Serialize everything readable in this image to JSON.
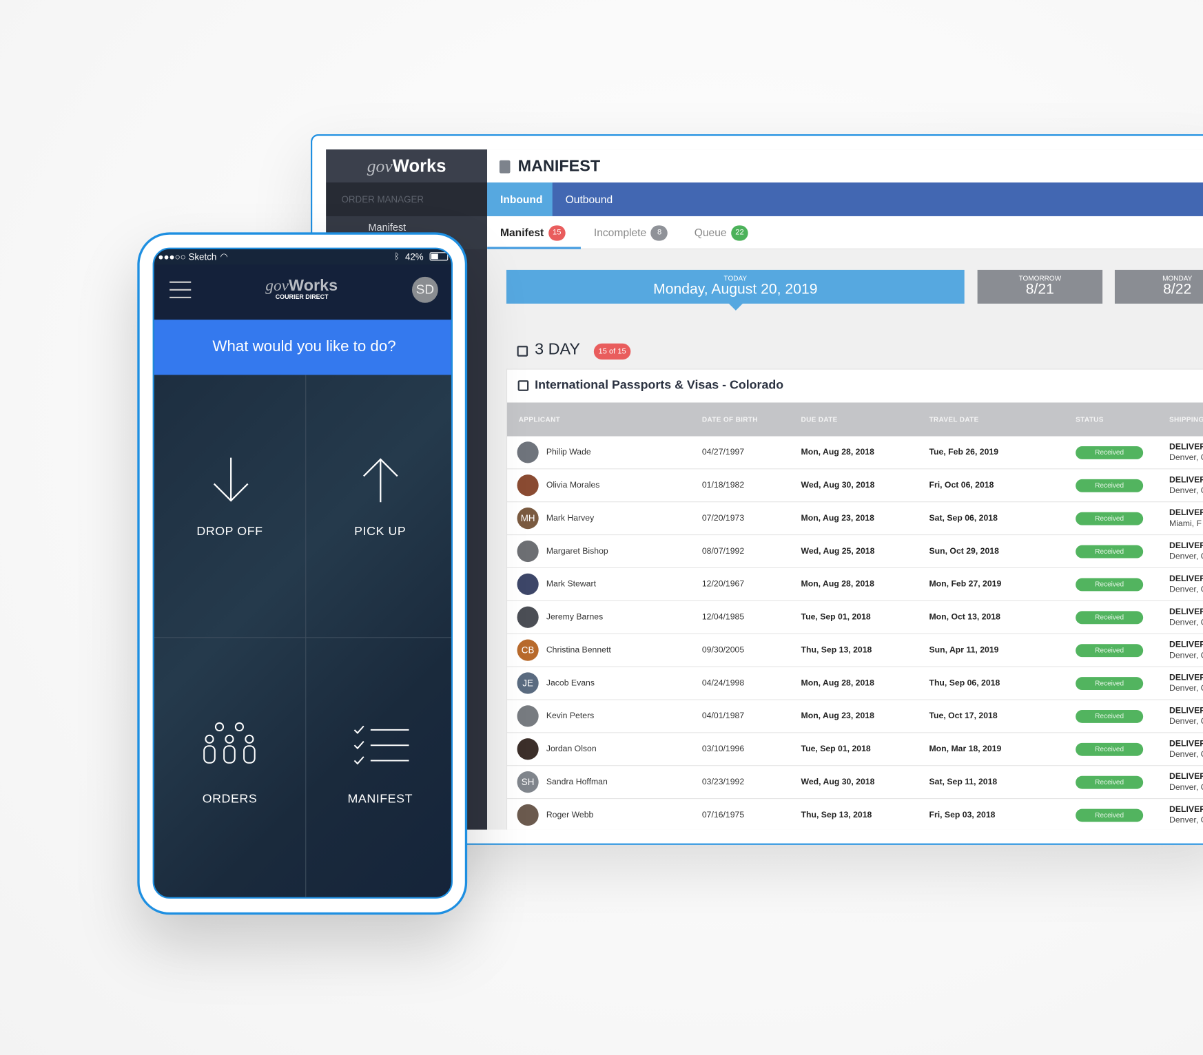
{
  "desktop": {
    "logo": {
      "gov": "gov",
      "works": "Works"
    },
    "sidebar": {
      "section": "ORDER MANAGER",
      "items": [
        {
          "label": "Manifest"
        }
      ]
    },
    "header": {
      "title": "MANIFEST",
      "icon": "clipboard-icon"
    },
    "nav": {
      "tabs": [
        {
          "label": "Inbound",
          "active": true
        },
        {
          "label": "Outbound",
          "active": false
        }
      ]
    },
    "subtabs": [
      {
        "label": "Manifest",
        "count": "15",
        "color": "#e95d5d",
        "active": true
      },
      {
        "label": "Incomplete",
        "count": "8",
        "color": "#8f9298"
      },
      {
        "label": "Queue",
        "count": "22",
        "color": "#4cb25a"
      }
    ],
    "dates": {
      "today_label": "TODAY",
      "today": "Monday, August 20, 2019",
      "tomorrow_label": "TOMORROW",
      "tomorrow": "8/21",
      "next_label": "MONDAY",
      "next": "8/22"
    },
    "group": {
      "title": "3 DAY",
      "badge": "15 of 15"
    },
    "card": {
      "title": "International Passports & Visas - Colorado"
    },
    "columns": [
      "APPLICANT",
      "DATE OF BIRTH",
      "DUE DATE",
      "TRAVEL DATE",
      "STATUS",
      "SHIPPING"
    ],
    "rows": [
      {
        "name": "Philip Wade",
        "initials": "",
        "dob": "04/27/1997",
        "due": "Mon, Aug 28, 2018",
        "travel": "Tue, Feb 26, 2019",
        "status": "Received",
        "ship": "DELIVER",
        "city": "Denver, C"
      },
      {
        "name": "Olivia Morales",
        "initials": "",
        "dob": "01/18/1982",
        "due": "Wed, Aug 30, 2018",
        "travel": "Fri, Oct 06, 2018",
        "status": "Received",
        "ship": "DELIVER",
        "city": "Denver, C"
      },
      {
        "name": "Mark Harvey",
        "initials": "MH",
        "dob": "07/20/1973",
        "due": "Mon, Aug 23, 2018",
        "travel": "Sat, Sep 06, 2018",
        "status": "Received",
        "ship": "DELIVER",
        "city": "Miami, F"
      },
      {
        "name": "Margaret Bishop",
        "initials": "",
        "dob": "08/07/1992",
        "due": "Wed, Aug 25, 2018",
        "travel": "Sun, Oct 29, 2018",
        "status": "Received",
        "ship": "DELIVER",
        "city": "Denver, C"
      },
      {
        "name": "Mark Stewart",
        "initials": "",
        "dob": "12/20/1967",
        "due": "Mon, Aug 28, 2018",
        "travel": "Mon, Feb 27, 2019",
        "status": "Received",
        "ship": "DELIVER",
        "city": "Denver, C"
      },
      {
        "name": "Jeremy Barnes",
        "initials": "",
        "dob": "12/04/1985",
        "due": "Tue, Sep 01, 2018",
        "travel": "Mon, Oct 13, 2018",
        "status": "Received",
        "ship": "DELIVER",
        "city": "Denver, C"
      },
      {
        "name": "Christina Bennett",
        "initials": "CB",
        "dob": "09/30/2005",
        "due": "Thu, Sep 13, 2018",
        "travel": "Sun, Apr 11, 2019",
        "status": "Received",
        "ship": "DELIVER",
        "city": "Denver, C"
      },
      {
        "name": "Jacob Evans",
        "initials": "JE",
        "dob": "04/24/1998",
        "due": "Mon, Aug 28, 2018",
        "travel": "Thu, Sep 06, 2018",
        "status": "Received",
        "ship": "DELIVER",
        "city": "Denver, C"
      },
      {
        "name": "Kevin Peters",
        "initials": "",
        "dob": "04/01/1987",
        "due": "Mon, Aug 23, 2018",
        "travel": "Tue, Oct 17, 2018",
        "status": "Received",
        "ship": "DELIVER",
        "city": "Denver, C"
      },
      {
        "name": "Jordan Olson",
        "initials": "",
        "dob": "03/10/1996",
        "due": "Tue, Sep 01, 2018",
        "travel": "Mon, Mar 18, 2019",
        "status": "Received",
        "ship": "DELIVER",
        "city": "Denver, C"
      },
      {
        "name": "Sandra Hoffman",
        "initials": "SH",
        "dob": "03/23/1992",
        "due": "Wed, Aug 30, 2018",
        "travel": "Sat, Sep 11, 2018",
        "status": "Received",
        "ship": "DELIVER",
        "city": "Denver, C"
      },
      {
        "name": "Roger Webb",
        "initials": "",
        "dob": "07/16/1975",
        "due": "Thu, Sep 13, 2018",
        "travel": "Fri, Sep 03, 2018",
        "status": "Received",
        "ship": "DELIVER",
        "city": "Denver, C"
      }
    ]
  },
  "phone": {
    "status": {
      "carrier": "●●●○○ Sketch",
      "battery": "42%"
    },
    "logo": {
      "gov": "gov",
      "works": "Works",
      "sub": "COURIER DIRECT"
    },
    "avatar": "SD",
    "banner": "What would you like to do?",
    "actions": [
      {
        "label": "DROP OFF",
        "icon": "arrow-down-icon"
      },
      {
        "label": "PICK UP",
        "icon": "arrow-up-icon"
      },
      {
        "label": "ORDERS",
        "icon": "people-icon"
      },
      {
        "label": "MANIFEST",
        "icon": "checklist-icon"
      }
    ]
  }
}
